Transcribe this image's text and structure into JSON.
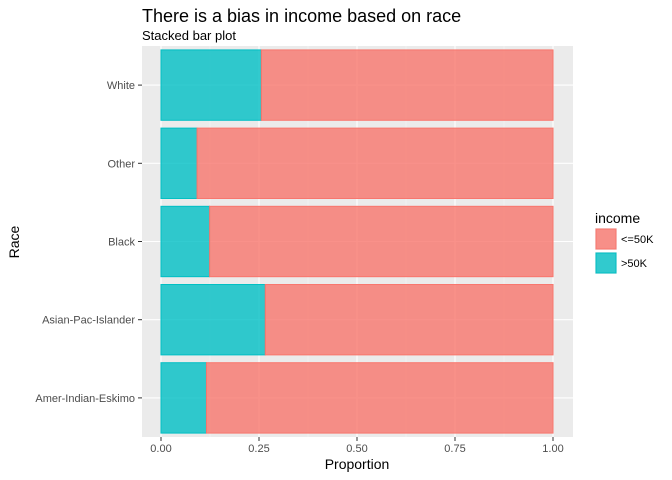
{
  "chart_data": {
    "type": "bar",
    "orientation": "horizontal",
    "stacked": true,
    "title": "There is a bias in income based on race",
    "subtitle": "Stacked bar plot",
    "xlabel": "Proportion",
    "ylabel": "Race",
    "xlim": [
      0,
      1
    ],
    "x_ticks": [
      "0.00",
      "0.25",
      "0.50",
      "0.75",
      "1.00"
    ],
    "x_tick_values": [
      0,
      0.25,
      0.5,
      0.75,
      1.0
    ],
    "categories": [
      "White",
      "Other",
      "Black",
      "Asian-Pac-Islander",
      "Amer-Indian-Eskimo"
    ],
    "series": [
      {
        "name": ">50K",
        "color": "#00BFC4",
        "values": [
          0.256,
          0.092,
          0.124,
          0.266,
          0.116
        ]
      },
      {
        "name": "<=50K",
        "color": "#F8766D",
        "values": [
          0.744,
          0.908,
          0.876,
          0.734,
          0.884
        ]
      }
    ],
    "legend": {
      "title": "income",
      "position": "right",
      "entries": [
        {
          "label": "<=50K",
          "color": "#F8766D"
        },
        {
          "label": ">50K",
          "color": "#00BFC4"
        }
      ]
    },
    "grid": true
  }
}
